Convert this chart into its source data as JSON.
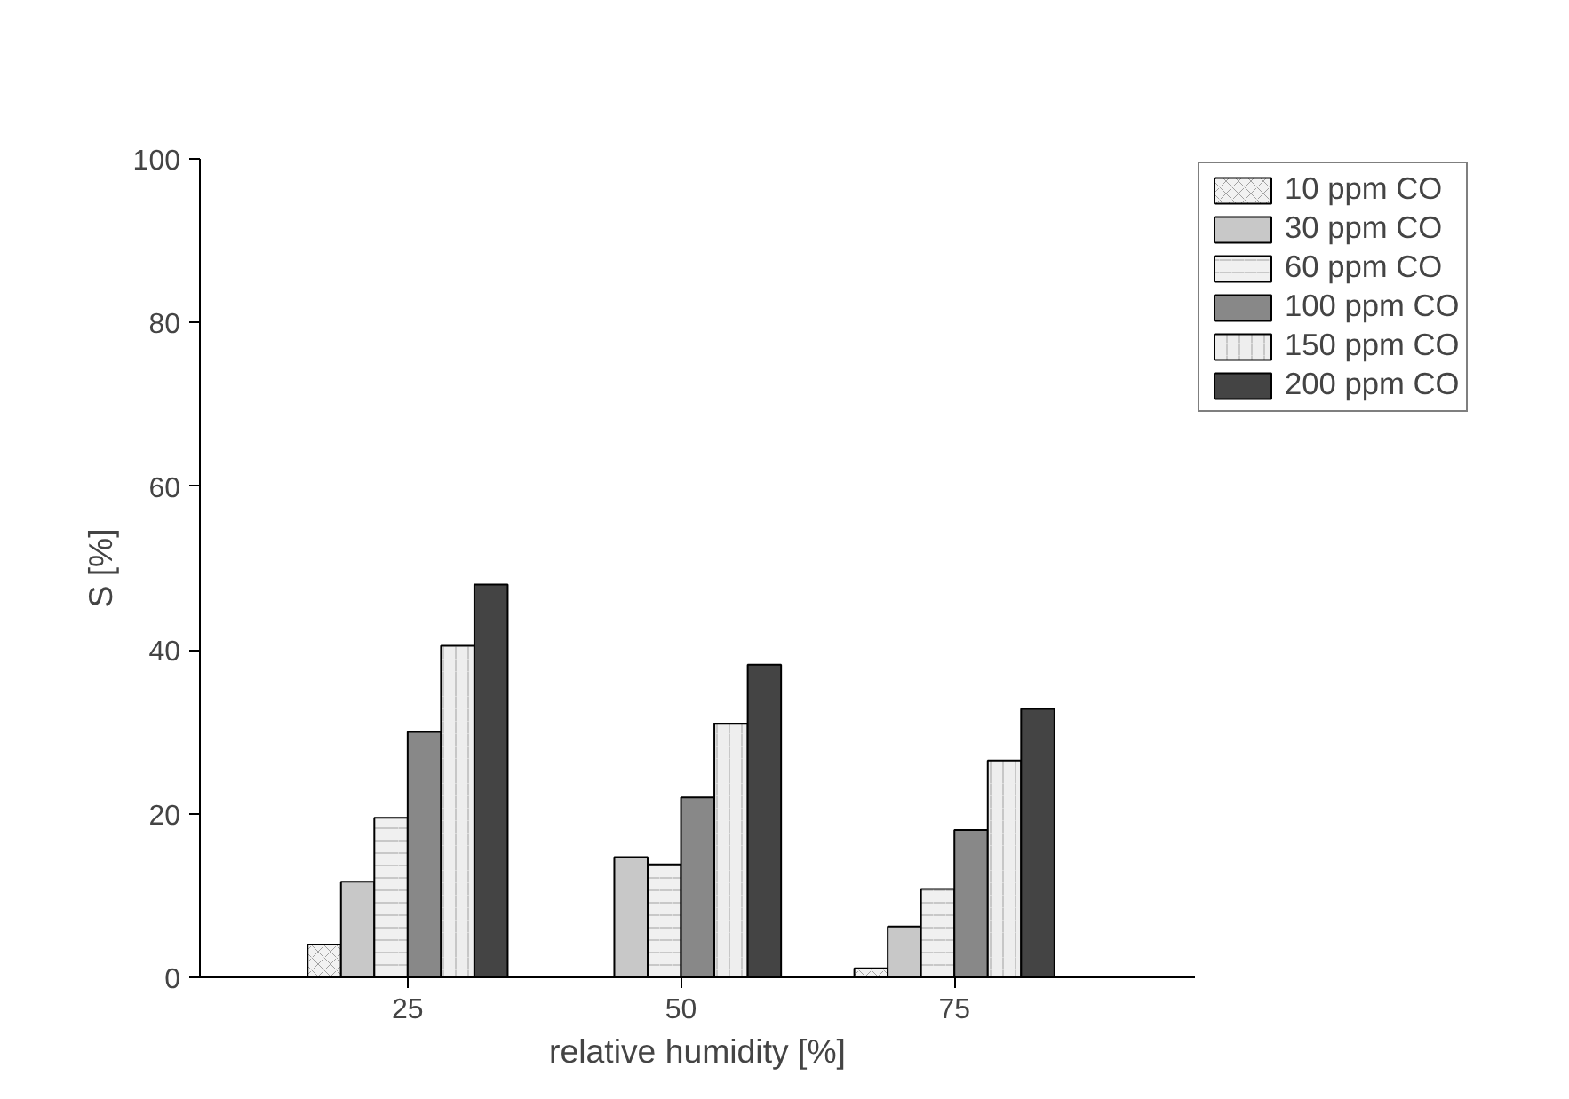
{
  "chart_data": {
    "type": "bar",
    "xlabel": "relative humidity [%]",
    "ylabel": "S [%]",
    "categories": [
      "25",
      "50",
      "75"
    ],
    "series": [
      {
        "name": "10 ppm CO",
        "color": "#f2f2f2",
        "values": [
          4.0,
          null,
          1.1
        ]
      },
      {
        "name": "30 ppm CO",
        "color": "#c8c8c8",
        "values": [
          11.7,
          14.7,
          6.2
        ]
      },
      {
        "name": "60 ppm CO",
        "color": "#f0f0f0",
        "values": [
          19.5,
          13.8,
          10.8
        ]
      },
      {
        "name": "100 ppm CO",
        "color": "#888888",
        "values": [
          30.0,
          22.0,
          18.0
        ]
      },
      {
        "name": "150 ppm CO",
        "color": "#eeeeee",
        "values": [
          40.5,
          31.0,
          26.5
        ]
      },
      {
        "name": "200 ppm CO",
        "color": "#444444",
        "values": [
          48.0,
          38.2,
          32.8
        ]
      }
    ],
    "ylim": [
      0,
      100
    ],
    "yticks": [
      0,
      20,
      40,
      60,
      80,
      100
    ],
    "grid": false,
    "legend": "top right"
  }
}
